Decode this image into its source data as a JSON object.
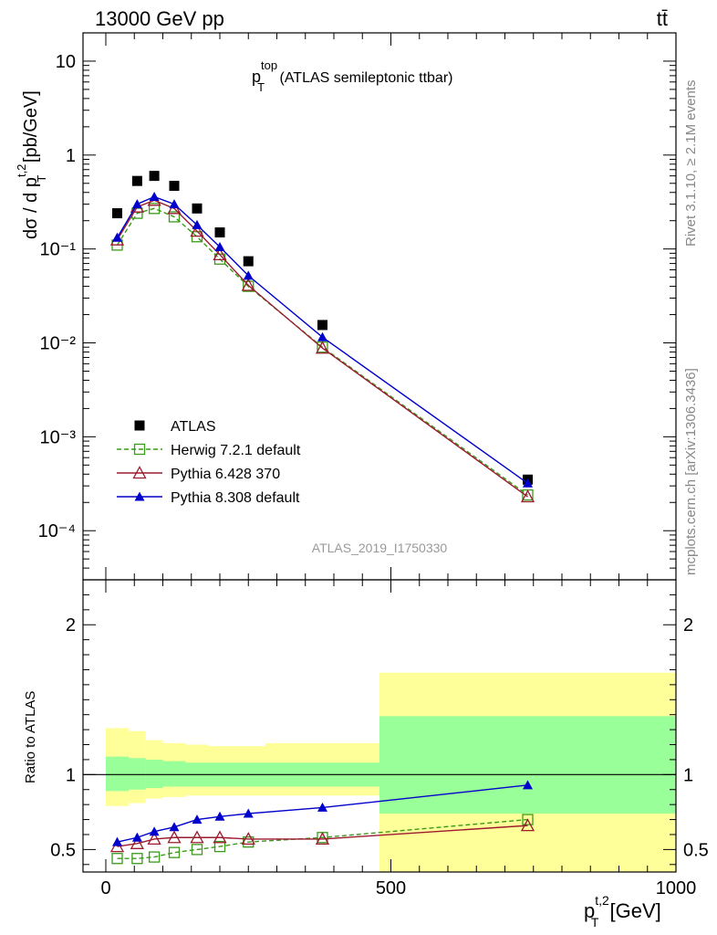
{
  "header": {
    "energy_label": "13000 GeV pp",
    "process_label": "tt̄"
  },
  "side_labels": {
    "rivet": "Rivet 3.1.10, ≥ 2.1M events",
    "mcplots": "mcplots.cern.ch [arXiv:1306.3436]"
  },
  "analysis_id": "ATLAS_2019_I1750330",
  "chart_data": [
    {
      "type": "scatter",
      "panel": "main",
      "title": {
        "base": "p",
        "sup": "top",
        "sub": "T",
        "rest": " (ATLAS semileptonic ttbar)"
      },
      "ylabel": {
        "prefix": "dσ / d p",
        "sup": "t,2",
        "sub": "T",
        "suffix": " [pb/GeV]"
      },
      "yscale": "log",
      "xlim": [
        -40,
        1000
      ],
      "ylim": [
        3e-05,
        20
      ],
      "ytick_labels": [
        {
          "value": 10,
          "label": "10"
        },
        {
          "value": 1,
          "label": "1"
        },
        {
          "value": 0.1,
          "label": "10⁻¹"
        },
        {
          "value": 0.01,
          "label": "10⁻²"
        },
        {
          "value": 0.001,
          "label": "10⁻³"
        },
        {
          "value": 0.0001,
          "label": "10⁻⁴"
        }
      ],
      "legend_position": "bottom-left",
      "x": [
        20,
        55,
        85,
        120,
        160,
        200,
        250,
        380,
        740
      ],
      "series": [
        {
          "name": "ATLAS",
          "color": "#000000",
          "marker": "square-filled",
          "line": "none",
          "values": [
            0.24,
            0.53,
            0.6,
            0.47,
            0.27,
            0.15,
            0.074,
            0.0155,
            0.00035
          ]
        },
        {
          "name": "Herwig 7.2.1 default",
          "color": "#3a9a1a",
          "marker": "square-open",
          "line": "dashed",
          "values": [
            0.11,
            0.24,
            0.27,
            0.22,
            0.135,
            0.078,
            0.04,
            0.009,
            0.00024
          ]
        },
        {
          "name": "Pythia 6.428 370",
          "color": "#9b1b2e",
          "marker": "triangle-open",
          "line": "solid",
          "values": [
            0.125,
            0.28,
            0.33,
            0.27,
            0.155,
            0.087,
            0.041,
            0.0088,
            0.00023
          ]
        },
        {
          "name": "Pythia 8.308 default",
          "color": "#0000cc",
          "marker": "triangle-filled",
          "line": "solid",
          "values": [
            0.132,
            0.3,
            0.36,
            0.3,
            0.18,
            0.105,
            0.052,
            0.0115,
            0.00032
          ]
        }
      ]
    },
    {
      "type": "line",
      "panel": "ratio",
      "ylabel": "Ratio to ATLAS",
      "xlabel": {
        "base": "p",
        "sup": "t,2",
        "sub": "T",
        "suffix": " [GeV]"
      },
      "xlim": [
        -40,
        1000
      ],
      "ylim": [
        0.35,
        2.3
      ],
      "xtick_labels": [
        "0",
        "500",
        "1000"
      ],
      "ytick_labels": [
        "0.5",
        "1",
        "2"
      ],
      "reference_line": 1,
      "x": [
        20,
        55,
        85,
        120,
        160,
        200,
        250,
        380,
        740
      ],
      "uncertainty_bands": [
        {
          "x_low": 0,
          "x_high": 40,
          "stat_low": 0.89,
          "stat_high": 1.12,
          "total_low": 0.79,
          "total_high": 1.31
        },
        {
          "x_low": 40,
          "x_high": 70,
          "stat_low": 0.9,
          "stat_high": 1.11,
          "total_low": 0.81,
          "total_high": 1.29
        },
        {
          "x_low": 70,
          "x_high": 100,
          "stat_low": 0.91,
          "stat_high": 1.1,
          "total_low": 0.84,
          "total_high": 1.23
        },
        {
          "x_low": 100,
          "x_high": 140,
          "stat_low": 0.92,
          "stat_high": 1.09,
          "total_low": 0.85,
          "total_high": 1.21
        },
        {
          "x_low": 140,
          "x_high": 180,
          "stat_low": 0.92,
          "stat_high": 1.08,
          "total_low": 0.86,
          "total_high": 1.2
        },
        {
          "x_low": 180,
          "x_high": 280,
          "stat_low": 0.92,
          "stat_high": 1.08,
          "total_low": 0.86,
          "total_high": 1.19
        },
        {
          "x_low": 280,
          "x_high": 480,
          "stat_low": 0.92,
          "stat_high": 1.08,
          "total_low": 0.86,
          "total_high": 1.21
        },
        {
          "x_low": 480,
          "x_high": 1000,
          "stat_low": 0.74,
          "stat_high": 1.39,
          "total_low": 0.35,
          "total_high": 1.68
        }
      ],
      "band_colors": {
        "stat": "#99ff99",
        "total": "#ffff99"
      },
      "series": [
        {
          "name": "Herwig 7.2.1 default",
          "color": "#3a9a1a",
          "marker": "square-open",
          "line": "dashed",
          "values": [
            0.44,
            0.44,
            0.45,
            0.48,
            0.5,
            0.52,
            0.55,
            0.58,
            0.7
          ]
        },
        {
          "name": "Pythia 6.428 370",
          "color": "#9b1b2e",
          "marker": "triangle-open",
          "line": "solid",
          "values": [
            0.52,
            0.54,
            0.57,
            0.58,
            0.58,
            0.58,
            0.57,
            0.57,
            0.66
          ]
        },
        {
          "name": "Pythia 8.308 default",
          "color": "#0000cc",
          "marker": "triangle-filled",
          "line": "solid",
          "values": [
            0.55,
            0.58,
            0.62,
            0.65,
            0.7,
            0.72,
            0.74,
            0.78,
            0.93
          ]
        }
      ]
    }
  ]
}
